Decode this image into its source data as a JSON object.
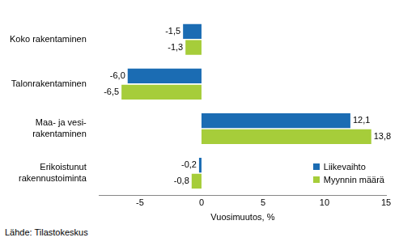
{
  "chart_data": {
    "type": "bar",
    "orientation": "horizontal",
    "categories": [
      "Koko rakentaminen",
      "Talonrakentaminen",
      "Maa- ja vesi-\nrakentaminen",
      "Erikoistunut\nrakennustoiminta"
    ],
    "series": [
      {
        "name": "Liikevaihto",
        "color": "#1b6cb3",
        "values": [
          -1.5,
          -6.0,
          12.1,
          -0.2
        ],
        "value_labels": [
          "-1,5",
          "-6,0",
          "12,1",
          "-0,2"
        ]
      },
      {
        "name": "Myynnin määrä",
        "color": "#a6cd3a",
        "values": [
          -1.3,
          -6.5,
          13.8,
          -0.8
        ],
        "value_labels": [
          "-1,3",
          "-6,5",
          "13,8",
          "-0,8"
        ]
      }
    ],
    "xlabel": "Vuosimuutos, %",
    "xlim": [
      -8.3,
      15
    ],
    "xticks": [
      -5,
      0,
      5,
      10,
      15
    ],
    "grid": false,
    "legend": "lower right",
    "data_labels": true,
    "source": "Lähde: Tilastokeskus"
  }
}
